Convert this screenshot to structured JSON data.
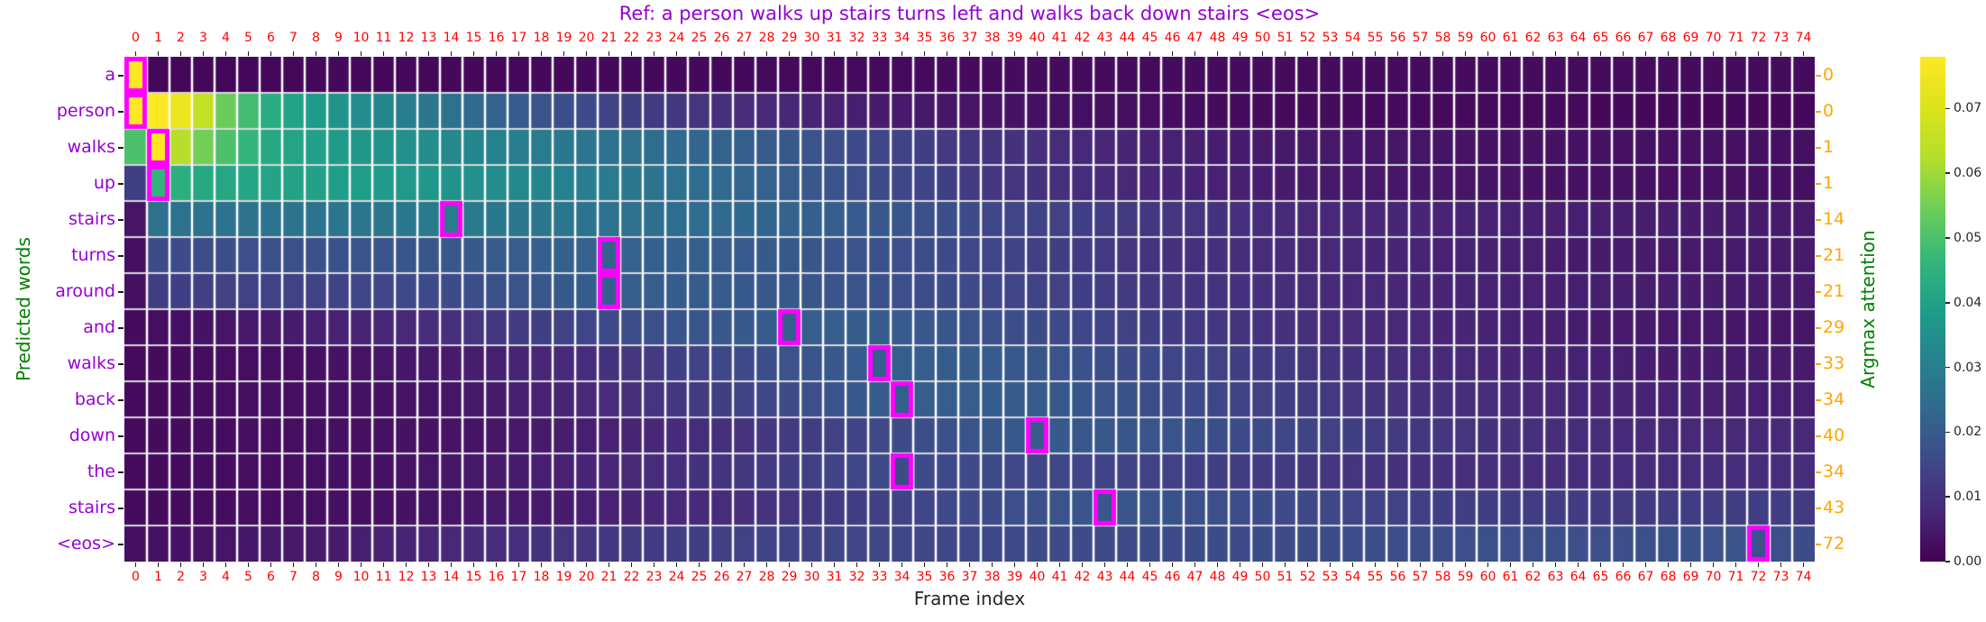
{
  "title": {
    "text": "Ref: a person walks up stairs turns left and walks back down stairs <eos>",
    "color": "#9400d3"
  },
  "axes": {
    "xlabel": "Frame index",
    "xlabel_color": "#262626",
    "ylabel_left": "Predicted words",
    "ylabel_right": "Argmax attention",
    "axis_label_color": "#008000",
    "x_tick_color": "#ff0000",
    "word_label_color": "#9400d3",
    "argmax_label_color": "#ffa500"
  },
  "chart_data": {
    "type": "heatmap",
    "title": "Ref: a person walks up stairs turns left and walks back down stairs <eos>",
    "xlabel": "Frame index",
    "ylabel": "Predicted words",
    "ylabel_secondary": "Argmax attention",
    "n_frames": 75,
    "x_ticks": [
      0,
      1,
      2,
      3,
      4,
      5,
      6,
      7,
      8,
      9,
      10,
      11,
      12,
      13,
      14,
      15,
      16,
      17,
      18,
      19,
      20,
      21,
      22,
      23,
      24,
      25,
      26,
      27,
      28,
      29,
      30,
      31,
      32,
      33,
      34,
      35,
      36,
      37,
      38,
      39,
      40,
      41,
      42,
      43,
      44,
      45,
      46,
      47,
      48,
      49,
      50,
      51,
      52,
      53,
      54,
      55,
      56,
      57,
      58,
      59,
      60,
      61,
      62,
      63,
      64,
      65,
      66,
      67,
      68,
      69,
      70,
      71,
      72,
      73,
      74
    ],
    "rows": [
      {
        "word": "a",
        "argmax": 0,
        "anchors": [
          [
            0,
            0.078
          ],
          [
            1,
            0.0012
          ],
          [
            20,
            0.0015
          ],
          [
            40,
            0.002
          ],
          [
            74,
            0.002
          ]
        ]
      },
      {
        "word": "person",
        "argmax": 0,
        "anchors": [
          [
            0,
            0.078
          ],
          [
            1,
            0.078
          ],
          [
            2,
            0.074
          ],
          [
            3,
            0.065
          ],
          [
            4,
            0.054
          ],
          [
            6,
            0.043
          ],
          [
            8,
            0.038
          ],
          [
            10,
            0.034
          ],
          [
            14,
            0.026
          ],
          [
            18,
            0.018
          ],
          [
            22,
            0.013
          ],
          [
            28,
            0.008
          ],
          [
            34,
            0.005
          ],
          [
            40,
            0.003
          ],
          [
            50,
            0.002
          ],
          [
            74,
            0.0015
          ]
        ]
      },
      {
        "word": "walks",
        "argmax": 1,
        "anchors": [
          [
            0,
            0.05
          ],
          [
            1,
            0.078
          ],
          [
            2,
            0.063
          ],
          [
            3,
            0.055
          ],
          [
            4,
            0.05
          ],
          [
            6,
            0.042
          ],
          [
            10,
            0.037
          ],
          [
            14,
            0.033
          ],
          [
            18,
            0.029
          ],
          [
            24,
            0.024
          ],
          [
            30,
            0.018
          ],
          [
            36,
            0.012
          ],
          [
            42,
            0.008
          ],
          [
            50,
            0.005
          ],
          [
            60,
            0.0035
          ],
          [
            74,
            0.003
          ]
        ]
      },
      {
        "word": "up",
        "argmax": 1,
        "anchors": [
          [
            0,
            0.013
          ],
          [
            1,
            0.046
          ],
          [
            3,
            0.042
          ],
          [
            8,
            0.04
          ],
          [
            14,
            0.036
          ],
          [
            20,
            0.03
          ],
          [
            26,
            0.024
          ],
          [
            32,
            0.017
          ],
          [
            38,
            0.011
          ],
          [
            44,
            0.008
          ],
          [
            52,
            0.005
          ],
          [
            62,
            0.0035
          ],
          [
            74,
            0.003
          ]
        ]
      },
      {
        "word": "stairs",
        "argmax": 14,
        "anchors": [
          [
            0,
            0.004
          ],
          [
            1,
            0.026
          ],
          [
            8,
            0.027
          ],
          [
            14,
            0.029
          ],
          [
            20,
            0.027
          ],
          [
            26,
            0.024
          ],
          [
            32,
            0.02
          ],
          [
            38,
            0.015
          ],
          [
            44,
            0.012
          ],
          [
            52,
            0.008
          ],
          [
            64,
            0.006
          ],
          [
            74,
            0.005
          ]
        ]
      },
      {
        "word": "turns",
        "argmax": 21,
        "anchors": [
          [
            0,
            0.003
          ],
          [
            1,
            0.016
          ],
          [
            8,
            0.0175
          ],
          [
            14,
            0.019
          ],
          [
            18,
            0.021
          ],
          [
            21,
            0.022
          ],
          [
            26,
            0.0205
          ],
          [
            32,
            0.018
          ],
          [
            38,
            0.0145
          ],
          [
            46,
            0.01
          ],
          [
            54,
            0.0075
          ],
          [
            64,
            0.0055
          ],
          [
            74,
            0.005
          ]
        ]
      },
      {
        "word": "around",
        "argmax": 21,
        "anchors": [
          [
            0,
            0.003
          ],
          [
            1,
            0.013
          ],
          [
            8,
            0.014
          ],
          [
            14,
            0.016
          ],
          [
            18,
            0.019
          ],
          [
            21,
            0.021
          ],
          [
            26,
            0.02
          ],
          [
            32,
            0.018
          ],
          [
            38,
            0.015
          ],
          [
            46,
            0.011
          ],
          [
            54,
            0.008
          ],
          [
            64,
            0.006
          ],
          [
            74,
            0.005
          ]
        ]
      },
      {
        "word": "and",
        "argmax": 29,
        "anchors": [
          [
            0,
            0.002
          ],
          [
            6,
            0.005
          ],
          [
            12,
            0.008
          ],
          [
            18,
            0.013
          ],
          [
            24,
            0.018
          ],
          [
            29,
            0.021
          ],
          [
            34,
            0.02
          ],
          [
            40,
            0.016
          ],
          [
            48,
            0.011
          ],
          [
            56,
            0.008
          ],
          [
            66,
            0.005
          ],
          [
            74,
            0.004
          ]
        ]
      },
      {
        "word": "walks",
        "argmax": 33,
        "anchors": [
          [
            0,
            0.002
          ],
          [
            8,
            0.003
          ],
          [
            14,
            0.005
          ],
          [
            20,
            0.009
          ],
          [
            26,
            0.015
          ],
          [
            33,
            0.021
          ],
          [
            38,
            0.02
          ],
          [
            44,
            0.016
          ],
          [
            52,
            0.011
          ],
          [
            60,
            0.0075
          ],
          [
            68,
            0.0055
          ],
          [
            74,
            0.005
          ]
        ]
      },
      {
        "word": "back",
        "argmax": 34,
        "anchors": [
          [
            0,
            0.002
          ],
          [
            8,
            0.003
          ],
          [
            14,
            0.004
          ],
          [
            20,
            0.008
          ],
          [
            26,
            0.013
          ],
          [
            30,
            0.017
          ],
          [
            34,
            0.021
          ],
          [
            40,
            0.02
          ],
          [
            46,
            0.016
          ],
          [
            54,
            0.011
          ],
          [
            62,
            0.008
          ],
          [
            70,
            0.006
          ],
          [
            74,
            0.006
          ]
        ]
      },
      {
        "word": "down",
        "argmax": 40,
        "anchors": [
          [
            0,
            0.002
          ],
          [
            10,
            0.003
          ],
          [
            16,
            0.004
          ],
          [
            22,
            0.007
          ],
          [
            28,
            0.011
          ],
          [
            34,
            0.016
          ],
          [
            40,
            0.02
          ],
          [
            46,
            0.018
          ],
          [
            52,
            0.014
          ],
          [
            60,
            0.01
          ],
          [
            68,
            0.008
          ],
          [
            74,
            0.008
          ]
        ]
      },
      {
        "word": "the",
        "argmax": 34,
        "anchors": [
          [
            0,
            0.002
          ],
          [
            10,
            0.003
          ],
          [
            16,
            0.005
          ],
          [
            22,
            0.008
          ],
          [
            28,
            0.012
          ],
          [
            34,
            0.016
          ],
          [
            40,
            0.015
          ],
          [
            48,
            0.013
          ],
          [
            56,
            0.01
          ],
          [
            64,
            0.009
          ],
          [
            74,
            0.009
          ]
        ]
      },
      {
        "word": "stairs",
        "argmax": 43,
        "anchors": [
          [
            0,
            0.002
          ],
          [
            10,
            0.003
          ],
          [
            18,
            0.005
          ],
          [
            26,
            0.009
          ],
          [
            34,
            0.014
          ],
          [
            43,
            0.019
          ],
          [
            50,
            0.016
          ],
          [
            58,
            0.013
          ],
          [
            66,
            0.012
          ],
          [
            72,
            0.013
          ],
          [
            74,
            0.012
          ]
        ]
      },
      {
        "word": "<eos>",
        "argmax": 72,
        "anchors": [
          [
            0,
            0.003
          ],
          [
            8,
            0.005
          ],
          [
            14,
            0.008
          ],
          [
            20,
            0.011
          ],
          [
            28,
            0.014
          ],
          [
            36,
            0.015
          ],
          [
            44,
            0.016
          ],
          [
            52,
            0.016
          ],
          [
            60,
            0.017
          ],
          [
            66,
            0.017
          ],
          [
            72,
            0.018
          ],
          [
            74,
            0.016
          ]
        ]
      }
    ],
    "vmin": 0.0,
    "vmax": 0.078,
    "colorbar_ticks": [
      "0.00",
      "0.01",
      "0.02",
      "0.03",
      "0.04",
      "0.05",
      "0.06",
      "0.07"
    ],
    "colorbar_tick_values": [
      0.0,
      0.01,
      0.02,
      0.03,
      0.04,
      0.05,
      0.06,
      0.07
    ],
    "colormap": "viridis",
    "colormap_stops": [
      "#440154",
      "#482878",
      "#3e4a89",
      "#31688e",
      "#26828e",
      "#1f9e89",
      "#35b779",
      "#6ece58",
      "#b5de2b",
      "#dce319",
      "#fde725"
    ],
    "highlight_box_color": "#ff00ff",
    "grid_v_color": "#ffffff",
    "grid_h_color": "#d9d9d9",
    "legend_position": "right-colorbar",
    "grid": true
  }
}
